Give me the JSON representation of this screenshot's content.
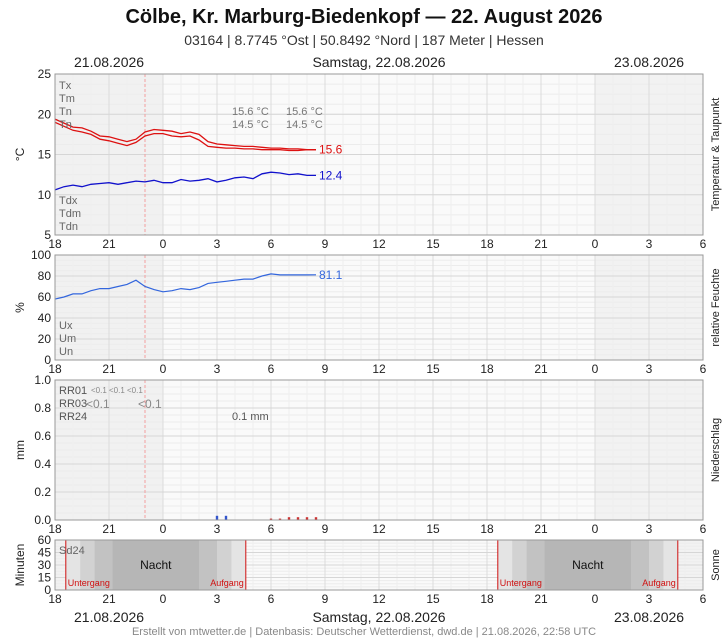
{
  "header": {
    "title": "Cölbe, Kr. Marburg-Biedenkopf  —  22. August 2026",
    "subtitle": "03164  |  8.7745 °Ost  |  50.8492 °Nord  |  187 Meter  |  Hessen"
  },
  "dates": {
    "left": "21.08.2026",
    "center": "Samstag, 22.08.2026",
    "right": "23.08.2026"
  },
  "x_ticks": [
    "18",
    "21",
    "0",
    "3",
    "6",
    "9",
    "12",
    "15",
    "18",
    "21",
    "0",
    "3",
    "6"
  ],
  "panels": {
    "temperature": {
      "side_label": "Temperatur & Taupunkt",
      "ylabel": "°C",
      "yticks": [
        "25",
        "20",
        "15",
        "10",
        "5"
      ],
      "legend_top": [
        "Tx",
        "Tm",
        "Tn",
        "Tn"
      ],
      "legend_bottom": [
        "Tdx",
        "Tdm",
        "Tdn"
      ],
      "current_temp": "15.6",
      "current_dew": "12.4",
      "summary": [
        {
          "a": "15.6 °C",
          "b": "15.6 °C"
        },
        {
          "a": "14.5 °C",
          "b": "14.5 °C"
        }
      ]
    },
    "humidity": {
      "side_label": "relative Feuchte",
      "ylabel": "%",
      "yticks": [
        "100",
        "80",
        "60",
        "40",
        "20",
        "0"
      ],
      "legend": [
        "Ux",
        "Um",
        "Un"
      ],
      "current": "81.1"
    },
    "precip": {
      "side_label": "Niederschlag",
      "ylabel": "mm",
      "yticks": [
        "1.0",
        "0.8",
        "0.6",
        "0.4",
        "0.2",
        "0.0"
      ],
      "legend": [
        "RR01",
        "RR03",
        "RR24"
      ],
      "small_vals": [
        "<0.1",
        "<0.1",
        "<0.1"
      ],
      "rr03_vals": [
        "<0.1",
        "<0.1"
      ],
      "total": "0.1 mm"
    },
    "sun": {
      "side_label": "Sonne",
      "ylabel": "Minuten",
      "yticks": [
        "60",
        "45",
        "30",
        "15",
        "0"
      ],
      "legend": "Sd24",
      "night_label": "Nacht",
      "sunset_label": "Untergang",
      "sunrise_label": "Aufgang"
    }
  },
  "colors": {
    "temperature": "#dd1111",
    "dewpoint": "#1111cc",
    "humidity": "#3366dd",
    "precip": "#3355cc",
    "grid": "#dddddd",
    "night": "#aaaaaa"
  },
  "chart_data": [
    {
      "type": "line",
      "title": "Temperatur & Taupunkt",
      "ylabel": "°C",
      "ylim": [
        5,
        25
      ],
      "x_unit": "hours since 21.08.2026 18:00",
      "series": [
        {
          "name": "Tx",
          "x": [
            0,
            0.5,
            1,
            1.5,
            2,
            2.5,
            3,
            3.5,
            4,
            4.5,
            5,
            5.5,
            6,
            6.5,
            7,
            7.5,
            8,
            8.5,
            9,
            9.5,
            10,
            10.5,
            11,
            11.5,
            12,
            12.5,
            13,
            13.5,
            14,
            14.5
          ],
          "values": [
            19.4,
            18.9,
            18.4,
            18.3,
            17.9,
            17.3,
            17.2,
            16.9,
            16.6,
            16.9,
            17.8,
            18.1,
            18.0,
            17.9,
            17.6,
            17.8,
            17.5,
            16.6,
            16.3,
            16.2,
            16.1,
            16.0,
            16.0,
            15.9,
            15.8,
            15.8,
            15.7,
            15.7,
            15.6,
            15.6
          ]
        },
        {
          "name": "Tn",
          "x": [
            0,
            0.5,
            1,
            1.5,
            2,
            2.5,
            3,
            3.5,
            4,
            4.5,
            5,
            5.5,
            6,
            6.5,
            7,
            7.5,
            8,
            8.5,
            9,
            9.5,
            10,
            10.5,
            11,
            11.5,
            12,
            12.5,
            13,
            13.5,
            14,
            14.5
          ],
          "values": [
            19.0,
            18.5,
            18.0,
            17.8,
            17.5,
            16.9,
            16.7,
            16.4,
            16.1,
            16.5,
            17.3,
            17.6,
            17.6,
            17.3,
            17.2,
            17.3,
            16.8,
            16.0,
            15.9,
            15.8,
            15.8,
            15.7,
            15.7,
            15.6,
            15.6,
            15.6,
            15.5,
            15.5,
            15.6,
            15.6
          ]
        },
        {
          "name": "Td",
          "x": [
            0,
            0.5,
            1,
            1.5,
            2,
            2.5,
            3,
            3.5,
            4,
            4.5,
            5,
            5.5,
            6,
            6.5,
            7,
            7.5,
            8,
            8.5,
            9,
            9.5,
            10,
            10.5,
            11,
            11.5,
            12,
            12.5,
            13,
            13.5,
            14,
            14.5
          ],
          "values": [
            10.6,
            11.0,
            11.2,
            11.0,
            11.3,
            11.4,
            11.5,
            11.3,
            11.5,
            11.7,
            11.6,
            11.8,
            11.5,
            11.5,
            11.9,
            11.7,
            11.8,
            12.0,
            11.6,
            11.8,
            12.1,
            12.2,
            12.0,
            12.6,
            12.8,
            12.7,
            12.5,
            12.6,
            12.4,
            12.4
          ]
        }
      ]
    },
    {
      "type": "line",
      "title": "relative Feuchte",
      "ylabel": "%",
      "ylim": [
        0,
        100
      ],
      "x_unit": "hours since 21.08.2026 18:00",
      "series": [
        {
          "name": "U",
          "x": [
            0,
            0.5,
            1,
            1.5,
            2,
            2.5,
            3,
            3.5,
            4,
            4.5,
            5,
            5.5,
            6,
            6.5,
            7,
            7.5,
            8,
            8.5,
            9,
            9.5,
            10,
            10.5,
            11,
            11.5,
            12,
            12.5,
            13,
            13.5,
            14,
            14.5
          ],
          "values": [
            58,
            60,
            63,
            63,
            66,
            68,
            68,
            70,
            72,
            76,
            70,
            67,
            65,
            66,
            68,
            67,
            69,
            73,
            74,
            75,
            76,
            77,
            77,
            80,
            82,
            81,
            81,
            81,
            81,
            81.1
          ]
        }
      ]
    },
    {
      "type": "bar",
      "title": "Niederschlag",
      "ylabel": "mm",
      "ylim": [
        0,
        1.0
      ],
      "x_unit": "hours since 21.08.2026 18:00",
      "series": [
        {
          "name": "RR01",
          "x": [
            9,
            9.5,
            12,
            12.5,
            13,
            13.5,
            14,
            14.5
          ],
          "values": [
            0.03,
            0.03,
            0.01,
            0.01,
            0.02,
            0.02,
            0.02,
            0.02
          ]
        }
      ]
    }
  ]
}
